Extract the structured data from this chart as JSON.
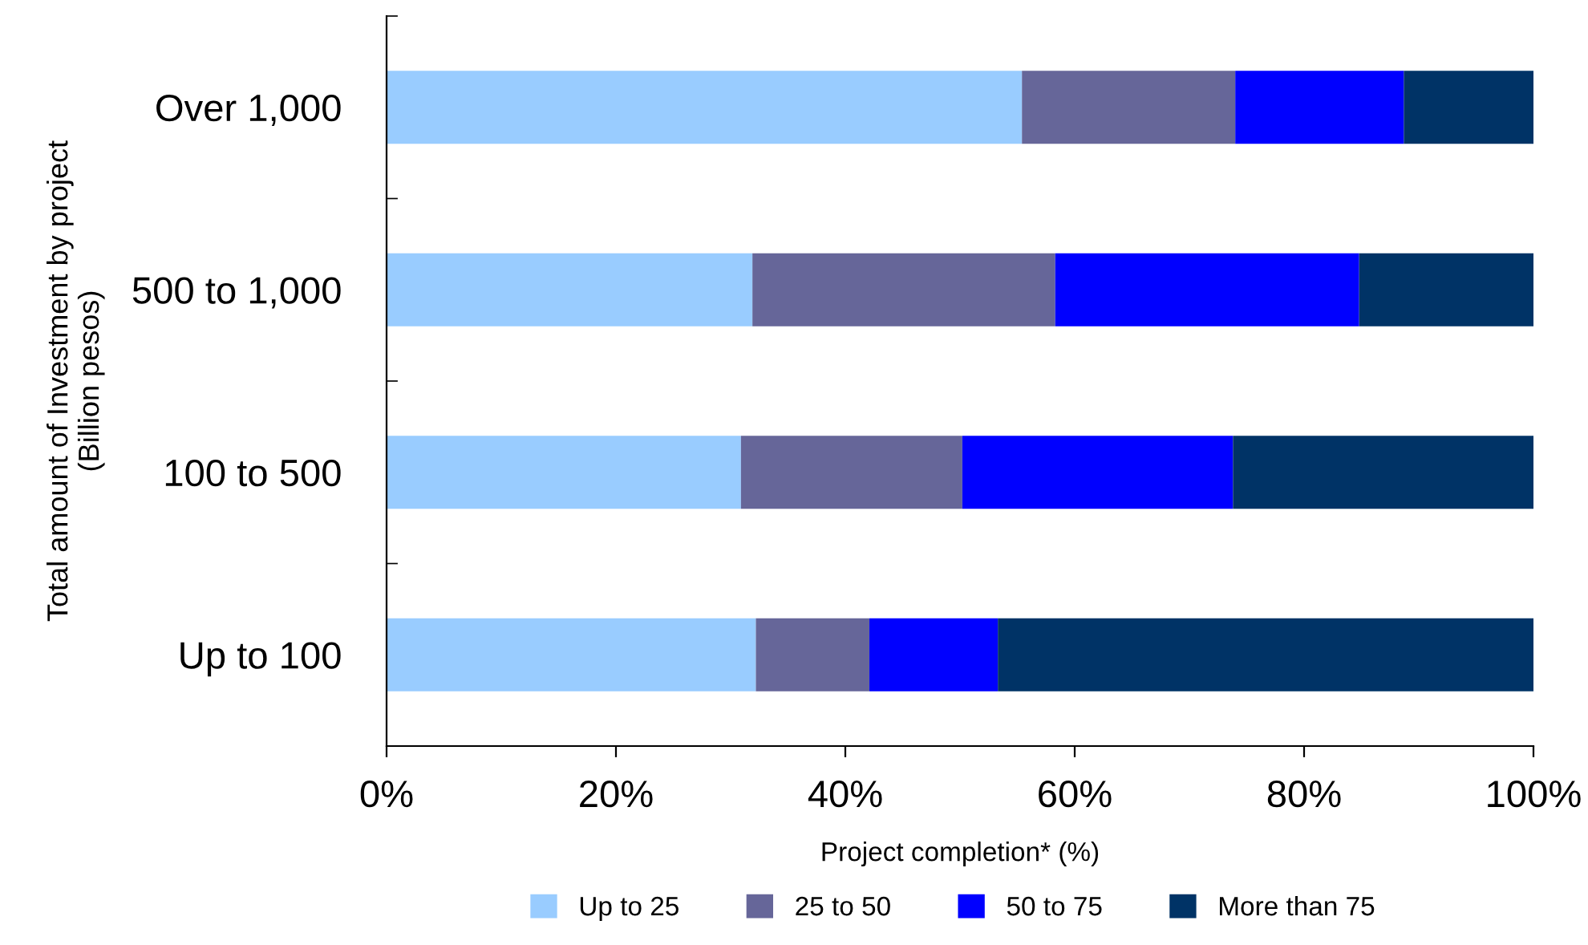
{
  "chart_data": {
    "type": "bar",
    "orientation": "horizontal",
    "stacked": true,
    "xlabel": "Project completion* (%)",
    "ylabel": "Total amount of Investment by project\n(Billion pesos)",
    "categories": [
      "Over 1,000",
      "500 to 1,000",
      "100 to 500",
      "Up to 100"
    ],
    "series": [
      {
        "name": "Up to 25",
        "color": "#99ccff",
        "values": [
          55.4,
          31.9,
          30.9,
          32.2
        ]
      },
      {
        "name": "25 to 50",
        "color": "#666699",
        "values": [
          18.6,
          26.4,
          19.3,
          9.9
        ]
      },
      {
        "name": "50 to 75",
        "color": "#0000ff",
        "values": [
          14.7,
          26.5,
          23.6,
          11.2
        ]
      },
      {
        "name": "More than 75",
        "color": "#003366",
        "values": [
          11.3,
          15.2,
          26.2,
          46.7
        ]
      }
    ],
    "xlim": [
      0,
      100
    ],
    "xticks": [
      {
        "value": 0,
        "label": "0%"
      },
      {
        "value": 20,
        "label": "20%"
      },
      {
        "value": 40,
        "label": "40%"
      },
      {
        "value": 60,
        "label": "60%"
      },
      {
        "value": 80,
        "label": "80%"
      },
      {
        "value": 100,
        "label": "100%"
      }
    ],
    "grid": false,
    "legend": "bottom"
  }
}
